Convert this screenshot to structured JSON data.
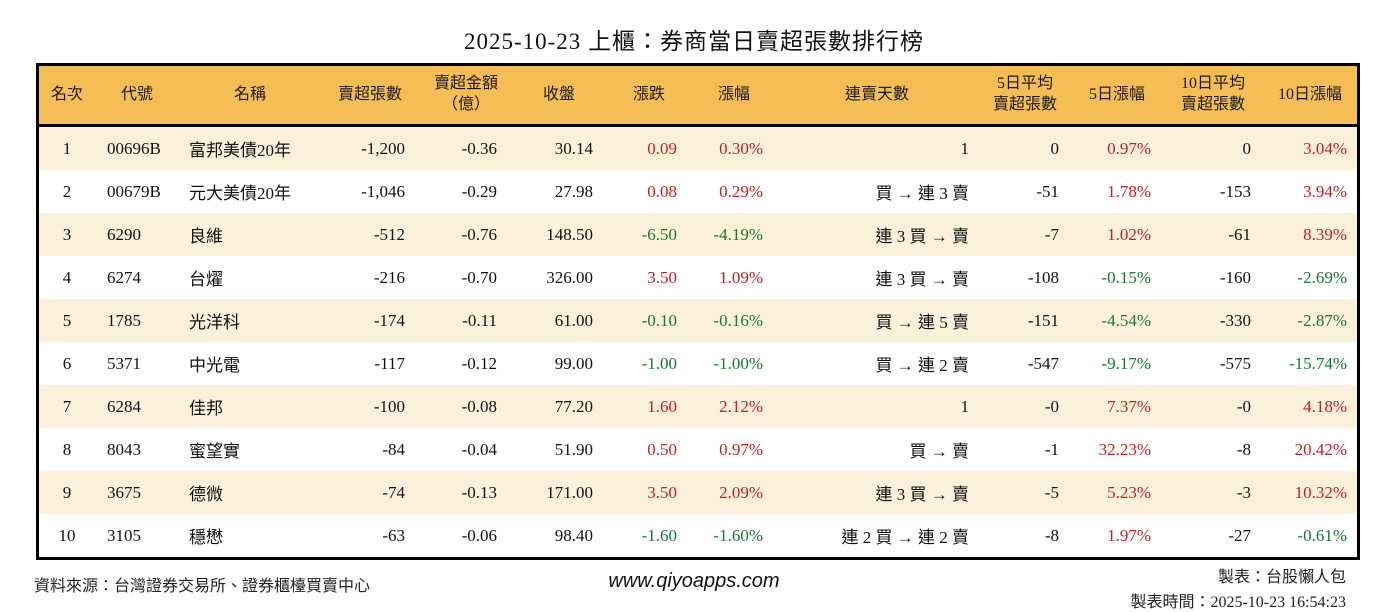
{
  "title": "2025-10-23 上櫃：券商當日賣超張數排行榜",
  "chart_data": {
    "type": "table",
    "title": "2025-10-23 上櫃：券商當日賣超張數排行榜",
    "columns": [
      "名次",
      "代號",
      "名稱",
      "賣超張數",
      "賣超金額\n（億）",
      "收盤",
      "漲跌",
      "漲幅",
      "連賣天數",
      "5日平均\n賣超張數",
      "5日漲幅",
      "10日平均\n賣超張數",
      "10日漲幅"
    ],
    "rows": [
      [
        "1",
        "00696B",
        "富邦美債20年",
        "-1,200",
        "-0.36",
        "30.14",
        "0.09",
        "0.30%",
        "1",
        "0",
        "0.97%",
        "0",
        "3.04%"
      ],
      [
        "2",
        "00679B",
        "元大美債20年",
        "-1,046",
        "-0.29",
        "27.98",
        "0.08",
        "0.29%",
        "買 → 連 3 賣",
        "-51",
        "1.78%",
        "-153",
        "3.94%"
      ],
      [
        "3",
        "6290",
        "良維",
        "-512",
        "-0.76",
        "148.50",
        "-6.50",
        "-4.19%",
        "連 3 買 → 賣",
        "-7",
        "1.02%",
        "-61",
        "8.39%"
      ],
      [
        "4",
        "6274",
        "台燿",
        "-216",
        "-0.70",
        "326.00",
        "3.50",
        "1.09%",
        "連 3 買 → 賣",
        "-108",
        "-0.15%",
        "-160",
        "-2.69%"
      ],
      [
        "5",
        "1785",
        "光洋科",
        "-174",
        "-0.11",
        "61.00",
        "-0.10",
        "-0.16%",
        "買 → 連 5 賣",
        "-151",
        "-4.54%",
        "-330",
        "-2.87%"
      ],
      [
        "6",
        "5371",
        "中光電",
        "-117",
        "-0.12",
        "99.00",
        "-1.00",
        "-1.00%",
        "買 → 連 2 賣",
        "-547",
        "-9.17%",
        "-575",
        "-15.74%"
      ],
      [
        "7",
        "6284",
        "佳邦",
        "-100",
        "-0.08",
        "77.20",
        "1.60",
        "2.12%",
        "1",
        "-0",
        "7.37%",
        "-0",
        "4.18%"
      ],
      [
        "8",
        "8043",
        "蜜望實",
        "-84",
        "-0.04",
        "51.90",
        "0.50",
        "0.97%",
        "買 → 賣",
        "-1",
        "32.23%",
        "-8",
        "20.42%"
      ],
      [
        "9",
        "3675",
        "德微",
        "-74",
        "-0.13",
        "171.00",
        "3.50",
        "2.09%",
        "連 3 買 → 賣",
        "-5",
        "5.23%",
        "-3",
        "10.32%"
      ],
      [
        "10",
        "3105",
        "穩懋",
        "-63",
        "-0.06",
        "98.40",
        "-1.60",
        "-1.60%",
        "連 2 買 → 連 2 賣",
        "-8",
        "1.97%",
        "-27",
        "-0.61%"
      ]
    ]
  },
  "footer": {
    "source": "資料來源：台灣證券交易所、證券櫃檯買賣中心",
    "website": "www.qiyoapps.com",
    "maker": "製表：台股懶人包",
    "made_time": "製表時間：2025-10-23 16:54:23"
  },
  "colors": {
    "header_bg": "#f5be55",
    "stripe_bg": "#fbf1db",
    "rise_red": "#c81e1e",
    "fall_green": "#157a2e",
    "border": "#000000"
  }
}
